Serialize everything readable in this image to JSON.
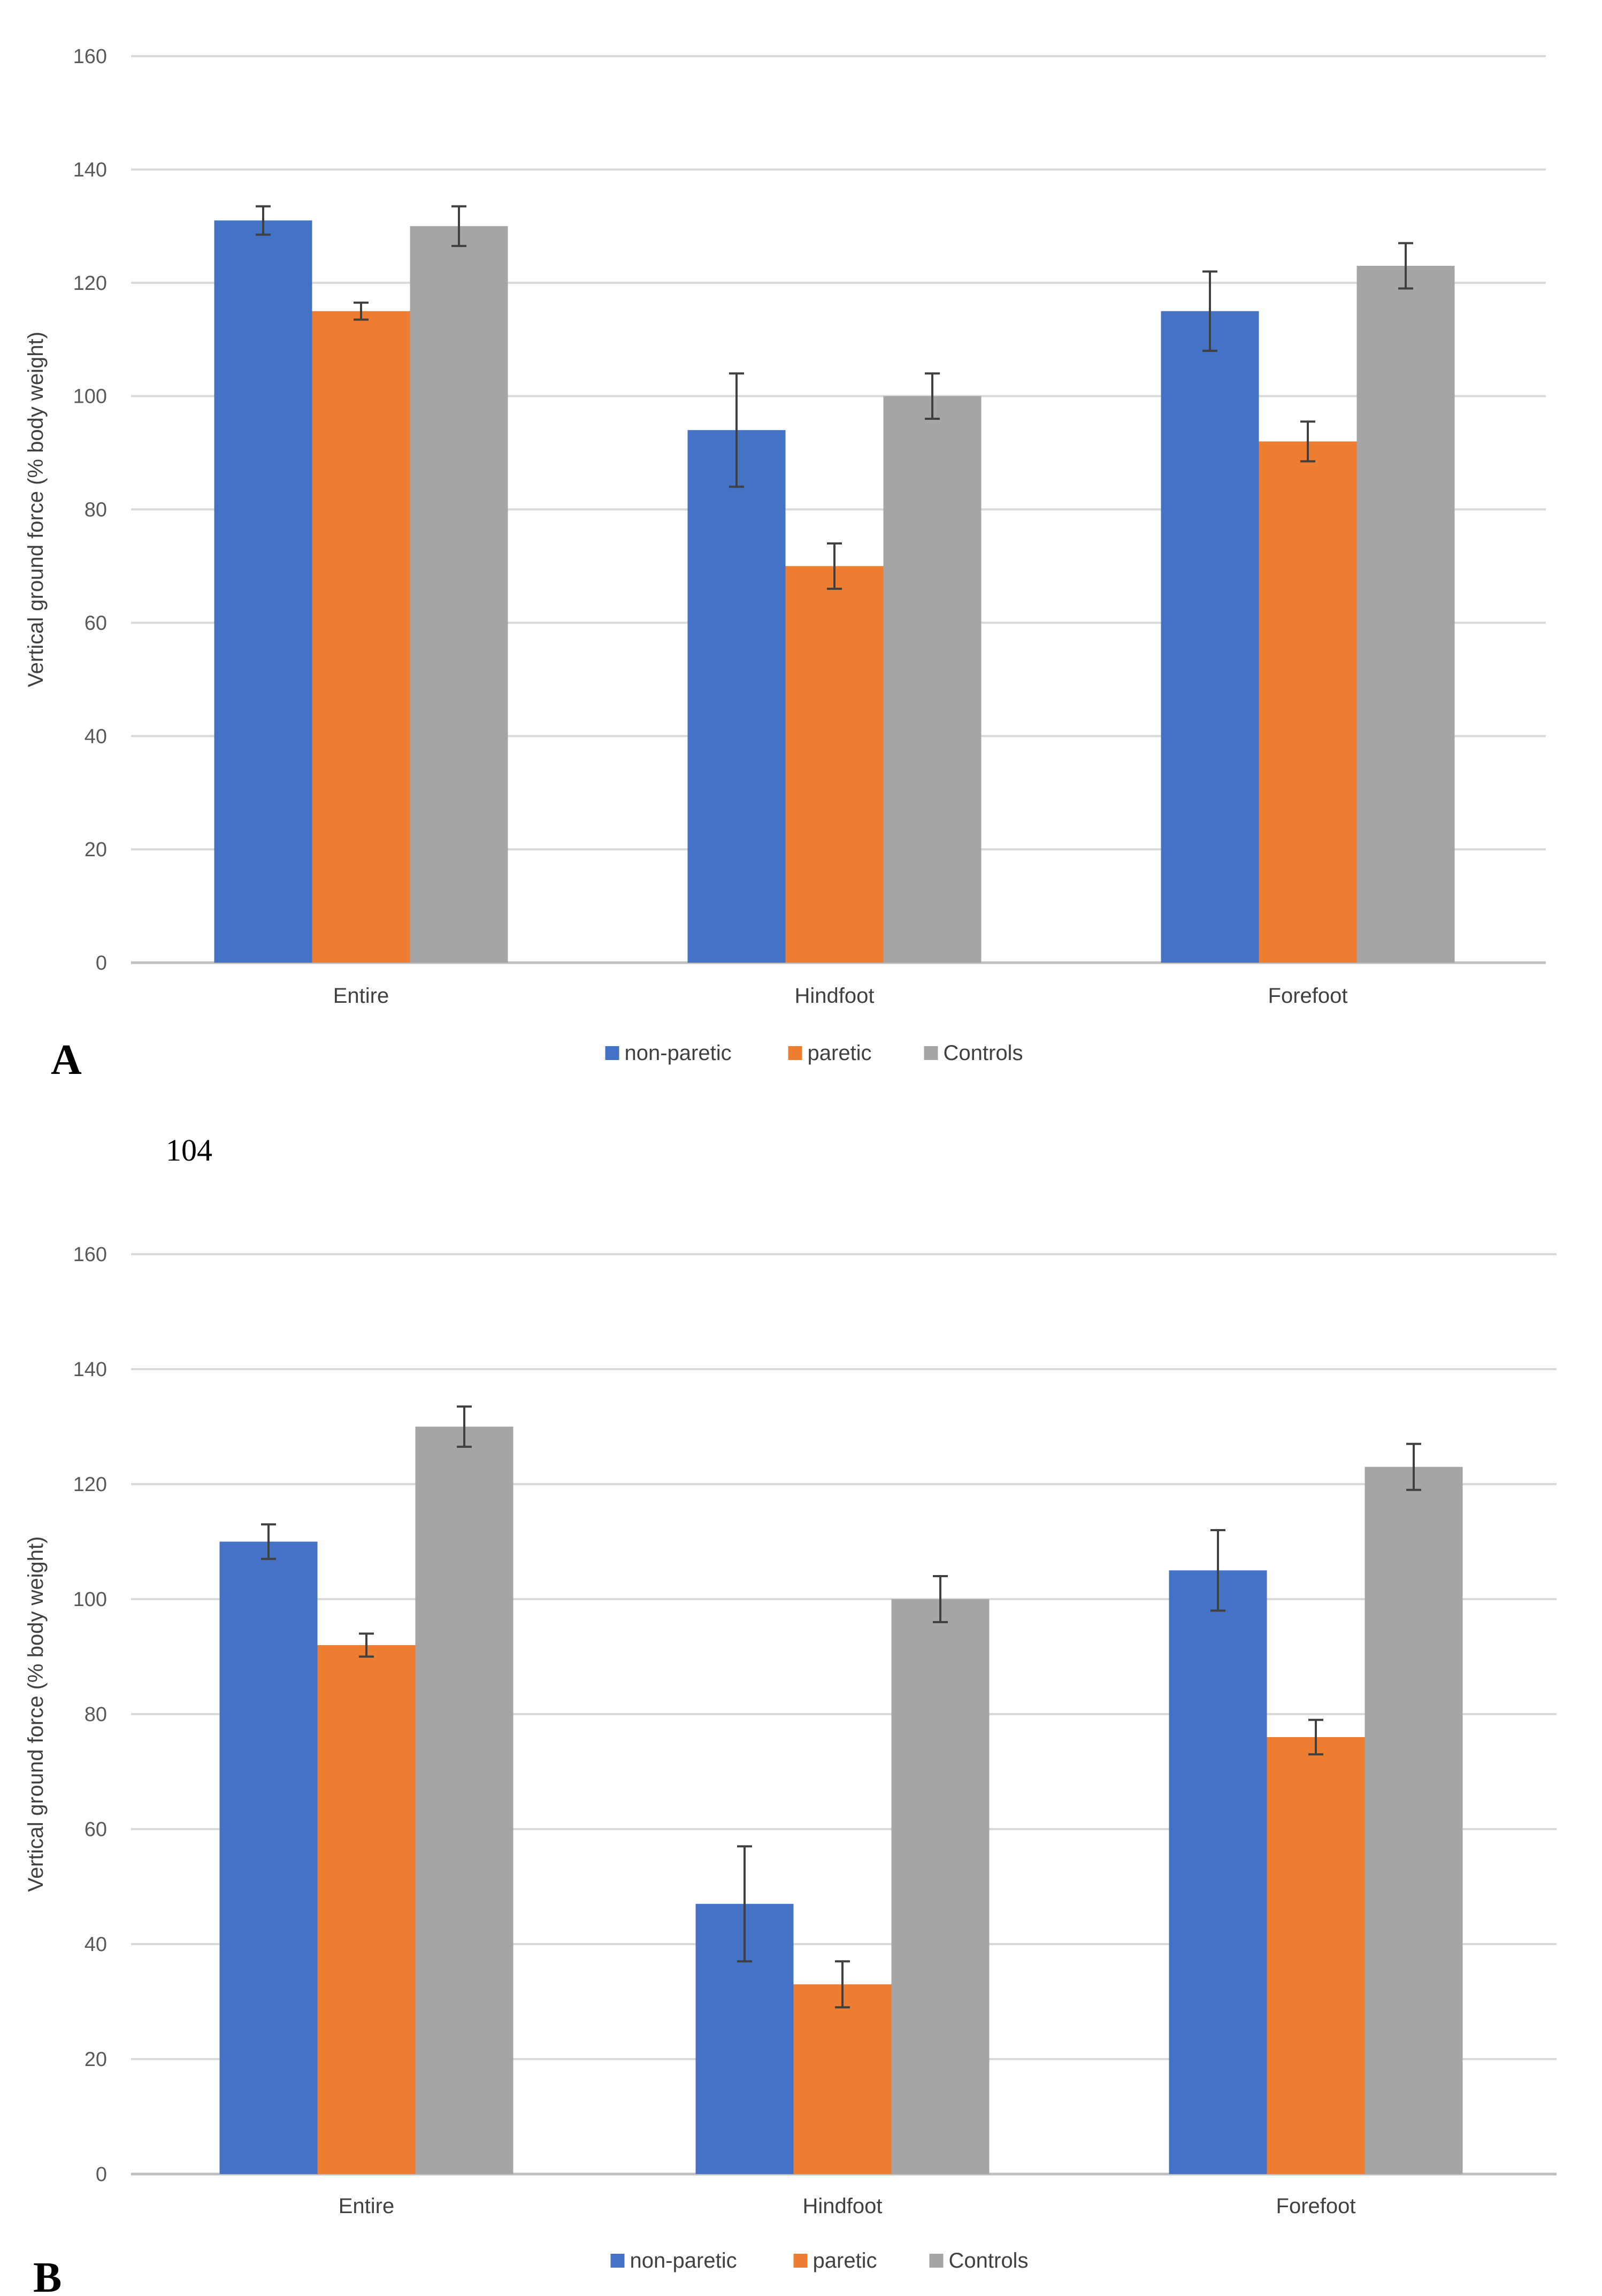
{
  "page_number": "104",
  "chart_data": [
    {
      "type": "bar",
      "panel_label": "A",
      "categories": [
        "Entire",
        "Hindfoot",
        "Forefoot"
      ],
      "ylabel": "Vertical ground force (% body weight)",
      "xlabel": "",
      "ylim": [
        0,
        160
      ],
      "yticks": [
        0,
        20,
        40,
        60,
        80,
        100,
        120,
        140,
        160
      ],
      "grid": true,
      "legend_position": "bottom",
      "series": [
        {
          "name": "non-paretic",
          "color": "#4472c4",
          "values": [
            131,
            94,
            115
          ],
          "errors": [
            2.5,
            10,
            7
          ]
        },
        {
          "name": "paretic",
          "color": "#ed7d31",
          "values": [
            115,
            70,
            92
          ],
          "errors": [
            1.5,
            4,
            3.5
          ]
        },
        {
          "name": "Controls",
          "color": "#a5a5a5",
          "values": [
            130,
            100,
            123
          ],
          "errors": [
            3.5,
            4,
            4
          ]
        }
      ]
    },
    {
      "type": "bar",
      "panel_label": "B",
      "categories": [
        "Entire",
        "Hindfoot",
        "Forefoot"
      ],
      "ylabel": "Vertical ground force (% body weight)",
      "xlabel": "",
      "ylim": [
        0,
        160
      ],
      "yticks": [
        0,
        20,
        40,
        60,
        80,
        100,
        120,
        140,
        160
      ],
      "grid": true,
      "legend_position": "bottom",
      "series": [
        {
          "name": "non-paretic",
          "color": "#4472c4",
          "values": [
            110,
            47,
            105
          ],
          "errors": [
            3,
            10,
            7
          ]
        },
        {
          "name": "paretic",
          "color": "#ed7d31",
          "values": [
            92,
            33,
            76
          ],
          "errors": [
            2,
            4,
            3
          ]
        },
        {
          "name": "Controls",
          "color": "#a5a5a5",
          "values": [
            130,
            100,
            123
          ],
          "errors": [
            3.5,
            4,
            4
          ]
        }
      ]
    }
  ]
}
